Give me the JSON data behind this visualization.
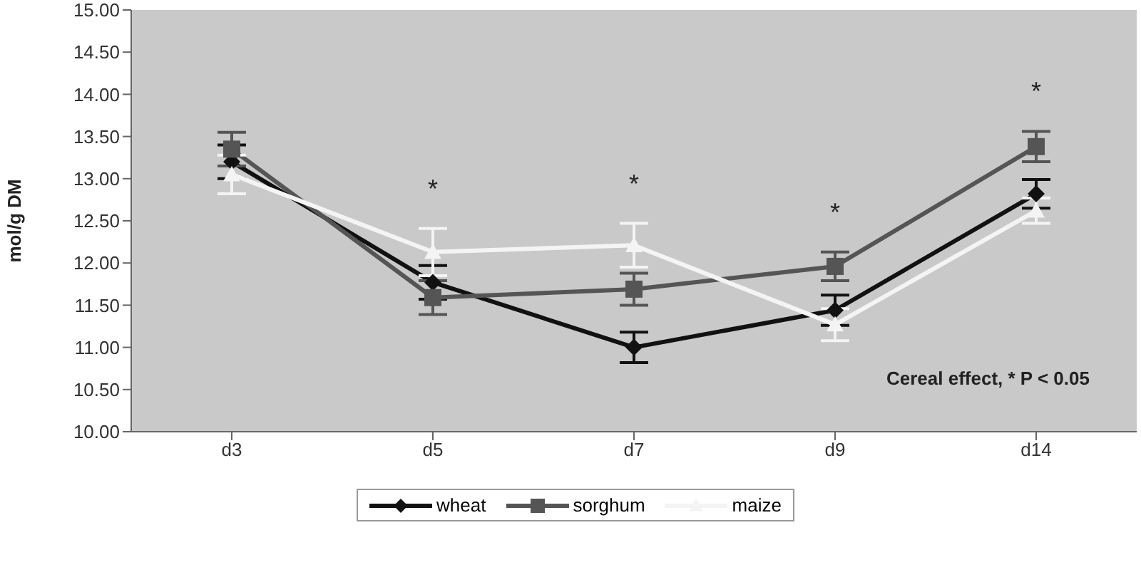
{
  "chart_data": {
    "type": "line",
    "ylabel": "mol/g DM",
    "categories": [
      "d3",
      "d5",
      "d7",
      "d9",
      "d14"
    ],
    "ylim": [
      10,
      15
    ],
    "yticks": [
      {
        "value": 10,
        "label": "10.00"
      },
      {
        "value": 10.5,
        "label": "10.50"
      },
      {
        "value": 11,
        "label": "11.00"
      },
      {
        "value": 11.5,
        "label": "11.50"
      },
      {
        "value": 12,
        "label": "12.00"
      },
      {
        "value": 12.5,
        "label": "12.50"
      },
      {
        "value": 13,
        "label": "13.00"
      },
      {
        "value": 13.5,
        "label": "13.50"
      },
      {
        "value": 14,
        "label": "14.00"
      },
      {
        "value": 14.5,
        "label": "14.50"
      },
      {
        "value": 15,
        "label": "15.00"
      }
    ],
    "grid": false,
    "legend": "bottom",
    "line_style": "solid",
    "series": [
      {
        "name": "wheat",
        "color": "#111111",
        "marker": "diamond",
        "values": [
          13.2,
          11.77,
          11.0,
          11.44,
          12.82
        ],
        "errors": [
          0.2,
          0.2,
          0.18,
          0.18,
          0.17
        ]
      },
      {
        "name": "sorghum",
        "color": "#555555",
        "marker": "square",
        "values": [
          13.35,
          11.59,
          11.69,
          11.96,
          13.38
        ],
        "errors": [
          0.2,
          0.2,
          0.19,
          0.17,
          0.18
        ]
      },
      {
        "name": "maize",
        "color": "#f4f4f4",
        "marker": "triangle",
        "values": [
          13.05,
          12.13,
          12.21,
          11.27,
          12.62
        ],
        "errors": [
          0.23,
          0.28,
          0.26,
          0.19,
          0.15
        ]
      }
    ],
    "annotations": [
      {
        "text": "*",
        "x": "d5",
        "y": 12.41
      },
      {
        "text": "*",
        "x": "d7",
        "y": 12.47
      },
      {
        "text": "*",
        "x": "d9",
        "y": 12.13
      },
      {
        "text": "*",
        "x": "d14",
        "y": 13.56
      },
      "Cereal effect,  * P < 0.05"
    ]
  }
}
